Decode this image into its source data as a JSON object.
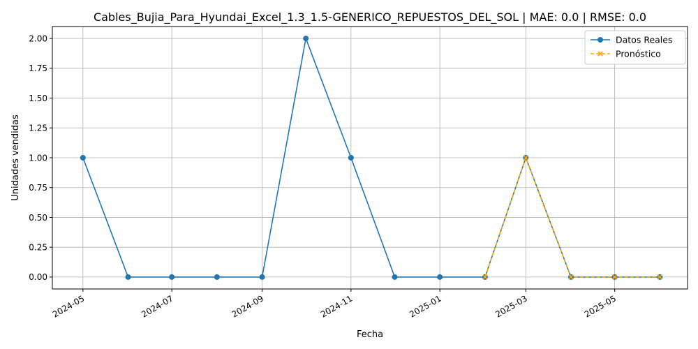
{
  "chart_data": {
    "type": "line",
    "title": "Cables_Bujia_Para_Hyundai_Excel_1.3_1.5-GENERICO_REPUESTOS_DEL_SOL | MAE: 0.0 | RMSE: 0.0",
    "xlabel": "Fecha",
    "ylabel": "Unidades vendidas",
    "ylim": [
      -0.1,
      2.1
    ],
    "xlim": [
      "2024-04-10",
      "2025-06-20"
    ],
    "grid": true,
    "legend_position": "top-right",
    "x_ticks": [
      "2024-05",
      "2024-07",
      "2024-09",
      "2024-11",
      "2025-01",
      "2025-03",
      "2025-05"
    ],
    "y_ticks": [
      "0.00",
      "0.25",
      "0.50",
      "0.75",
      "1.00",
      "1.25",
      "1.50",
      "1.75",
      "2.00"
    ],
    "series": [
      {
        "name": "Datos Reales",
        "color": "#1f77b4",
        "line_style": "solid",
        "marker": "circle",
        "x": [
          "2024-05-01",
          "2024-06-01",
          "2024-07-01",
          "2024-08-01",
          "2024-09-01",
          "2024-10-01",
          "2024-11-01",
          "2024-12-01",
          "2025-01-01",
          "2025-02-01",
          "2025-03-01",
          "2025-04-01",
          "2025-05-01",
          "2025-06-01"
        ],
        "values": [
          1,
          0,
          0,
          0,
          0,
          2,
          1,
          0,
          0,
          0,
          1,
          0,
          0,
          0
        ]
      },
      {
        "name": "Pronóstico",
        "color": "#ffa500",
        "line_style": "dashed",
        "marker": "x",
        "x": [
          "2025-02-01",
          "2025-03-01",
          "2025-04-01",
          "2025-05-01",
          "2025-06-01"
        ],
        "values": [
          0,
          1,
          0,
          0,
          0
        ]
      }
    ]
  }
}
